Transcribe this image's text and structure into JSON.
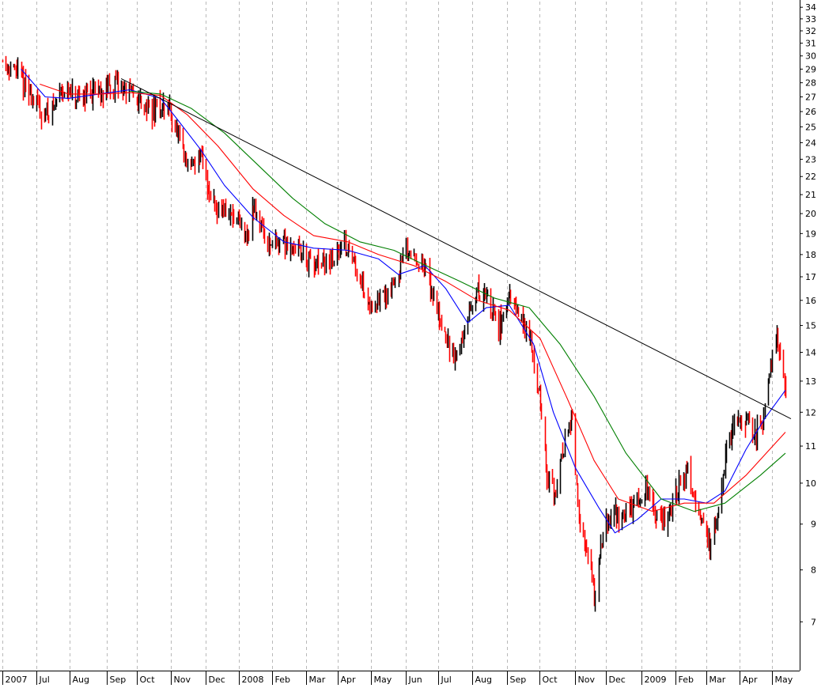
{
  "chart_data": {
    "type": "candlestick",
    "title": "",
    "xlabel": "",
    "ylabel": "",
    "y_scale": "log",
    "ylim": [
      6.2,
      34.5
    ],
    "grid": "vertical dashed",
    "y_ticks": [
      7,
      8,
      9,
      10,
      11,
      12,
      13,
      14,
      15,
      16,
      17,
      18,
      19,
      20,
      21,
      22,
      23,
      24,
      25,
      26,
      27,
      28,
      29,
      30,
      31,
      32,
      33,
      34
    ],
    "x_ticks": [
      {
        "label": "2007",
        "date": "2007-06-01"
      },
      {
        "label": "Jul",
        "date": "2007-07-02"
      },
      {
        "label": "Aug",
        "date": "2007-08-01"
      },
      {
        "label": "Sep",
        "date": "2007-09-04"
      },
      {
        "label": "Oct",
        "date": "2007-10-01"
      },
      {
        "label": "Nov",
        "date": "2007-11-01"
      },
      {
        "label": "Dec",
        "date": "2007-12-03"
      },
      {
        "label": "2008",
        "date": "2008-01-02"
      },
      {
        "label": "Feb",
        "date": "2008-02-01"
      },
      {
        "label": "Mar",
        "date": "2008-03-03"
      },
      {
        "label": "Apr",
        "date": "2008-04-01"
      },
      {
        "label": "May",
        "date": "2008-05-01"
      },
      {
        "label": "Jun",
        "date": "2008-06-02"
      },
      {
        "label": "Jul",
        "date": "2008-07-01"
      },
      {
        "label": "Aug",
        "date": "2008-08-01"
      },
      {
        "label": "Sep",
        "date": "2008-09-02"
      },
      {
        "label": "Oct",
        "date": "2008-10-01"
      },
      {
        "label": "Nov",
        "date": "2008-11-03"
      },
      {
        "label": "Dec",
        "date": "2008-12-01"
      },
      {
        "label": "2009",
        "date": "2009-01-02"
      },
      {
        "label": "Feb",
        "date": "2009-02-02"
      },
      {
        "label": "Mar",
        "date": "2009-03-02"
      },
      {
        "label": "Apr",
        "date": "2009-04-01"
      },
      {
        "label": "May",
        "date": "2009-05-01"
      }
    ],
    "price": [
      {
        "date": "2007-06-01",
        "close": 29.6
      },
      {
        "date": "2007-06-15",
        "close": 28.7
      },
      {
        "date": "2007-06-29",
        "close": 26.8
      },
      {
        "date": "2007-07-09",
        "close": 25.8
      },
      {
        "date": "2007-07-18",
        "close": 26.3
      },
      {
        "date": "2007-07-24",
        "close": 27.8
      },
      {
        "date": "2007-07-31",
        "close": 27.1
      },
      {
        "date": "2007-08-09",
        "close": 26.6
      },
      {
        "date": "2007-08-16",
        "close": 27.5
      },
      {
        "date": "2007-08-28",
        "close": 27.4
      },
      {
        "date": "2007-09-14",
        "close": 27.9
      },
      {
        "date": "2007-09-25",
        "close": 27.2
      },
      {
        "date": "2007-10-04",
        "close": 26.7
      },
      {
        "date": "2007-10-16",
        "close": 26.1
      },
      {
        "date": "2007-10-30",
        "close": 26.3
      },
      {
        "date": "2007-11-07",
        "close": 24.4
      },
      {
        "date": "2007-11-15",
        "close": 22.6
      },
      {
        "date": "2007-11-28",
        "close": 23.2
      },
      {
        "date": "2007-12-06",
        "close": 21.2
      },
      {
        "date": "2007-12-13",
        "close": 20.4
      },
      {
        "date": "2007-12-27",
        "close": 19.8
      },
      {
        "date": "2008-01-09",
        "close": 18.8
      },
      {
        "date": "2008-01-16",
        "close": 20.4
      },
      {
        "date": "2008-01-29",
        "close": 18.6
      },
      {
        "date": "2008-02-12",
        "close": 18.6
      },
      {
        "date": "2008-02-26",
        "close": 18.3
      },
      {
        "date": "2008-03-10",
        "close": 17.4
      },
      {
        "date": "2008-03-24",
        "close": 17.6
      },
      {
        "date": "2008-04-07",
        "close": 18.5
      },
      {
        "date": "2008-04-18",
        "close": 17.5
      },
      {
        "date": "2008-04-30",
        "close": 15.8
      },
      {
        "date": "2008-05-12",
        "close": 16.1
      },
      {
        "date": "2008-05-22",
        "close": 16.7
      },
      {
        "date": "2008-06-02",
        "close": 18.2
      },
      {
        "date": "2008-06-12",
        "close": 17.9
      },
      {
        "date": "2008-06-20",
        "close": 17.2
      },
      {
        "date": "2008-07-01",
        "close": 15.6
      },
      {
        "date": "2008-07-10",
        "close": 14.2
      },
      {
        "date": "2008-07-17",
        "close": 13.8
      },
      {
        "date": "2008-07-25",
        "close": 14.8
      },
      {
        "date": "2008-08-05",
        "close": 16.4
      },
      {
        "date": "2008-08-14",
        "close": 16.2
      },
      {
        "date": "2008-08-25",
        "close": 15.0
      },
      {
        "date": "2008-09-04",
        "close": 16.0
      },
      {
        "date": "2008-09-15",
        "close": 15.2
      },
      {
        "date": "2008-09-24",
        "close": 14.2
      },
      {
        "date": "2008-10-01",
        "close": 12.6
      },
      {
        "date": "2008-10-08",
        "close": 10.1
      },
      {
        "date": "2008-10-16",
        "close": 9.8
      },
      {
        "date": "2008-10-23",
        "close": 11.0
      },
      {
        "date": "2008-10-31",
        "close": 11.8
      },
      {
        "date": "2008-11-06",
        "close": 9.0
      },
      {
        "date": "2008-11-14",
        "close": 8.4
      },
      {
        "date": "2008-11-20",
        "close": 7.5
      },
      {
        "date": "2008-11-26",
        "close": 8.6
      },
      {
        "date": "2008-12-05",
        "close": 9.3
      },
      {
        "date": "2008-12-15",
        "close": 9.0
      },
      {
        "date": "2008-12-23",
        "close": 9.4
      },
      {
        "date": "2009-01-06",
        "close": 9.9
      },
      {
        "date": "2009-01-15",
        "close": 9.1
      },
      {
        "date": "2009-01-26",
        "close": 9.2
      },
      {
        "date": "2009-02-05",
        "close": 9.9
      },
      {
        "date": "2009-02-13",
        "close": 10.3
      },
      {
        "date": "2009-02-24",
        "close": 9.3
      },
      {
        "date": "2009-03-06",
        "close": 8.4
      },
      {
        "date": "2009-03-13",
        "close": 9.4
      },
      {
        "date": "2009-03-20",
        "close": 10.9
      },
      {
        "date": "2009-03-27",
        "close": 11.7
      },
      {
        "date": "2009-04-06",
        "close": 11.9
      },
      {
        "date": "2009-04-14",
        "close": 11.3
      },
      {
        "date": "2009-04-22",
        "close": 11.6
      },
      {
        "date": "2009-04-28",
        "close": 13.3
      },
      {
        "date": "2009-05-04",
        "close": 14.6
      },
      {
        "date": "2009-05-08",
        "close": 14.3
      },
      {
        "date": "2009-05-13",
        "close": 12.8
      }
    ],
    "ma_short": {
      "color": "#0000ff",
      "points": [
        {
          "date": "2007-06-18",
          "value": 29.0
        },
        {
          "date": "2007-07-10",
          "value": 27.0
        },
        {
          "date": "2007-07-31",
          "value": 26.9
        },
        {
          "date": "2007-08-28",
          "value": 27.2
        },
        {
          "date": "2007-09-25",
          "value": 27.5
        },
        {
          "date": "2007-10-23",
          "value": 26.9
        },
        {
          "date": "2007-11-08",
          "value": 25.4
        },
        {
          "date": "2007-11-28",
          "value": 23.6
        },
        {
          "date": "2007-12-20",
          "value": 21.5
        },
        {
          "date": "2008-01-15",
          "value": 19.8
        },
        {
          "date": "2008-02-12",
          "value": 18.6
        },
        {
          "date": "2008-03-10",
          "value": 18.3
        },
        {
          "date": "2008-04-10",
          "value": 18.2
        },
        {
          "date": "2008-05-08",
          "value": 17.8
        },
        {
          "date": "2008-05-26",
          "value": 17.1
        },
        {
          "date": "2008-06-19",
          "value": 17.5
        },
        {
          "date": "2008-07-08",
          "value": 16.5
        },
        {
          "date": "2008-07-28",
          "value": 15.1
        },
        {
          "date": "2008-08-14",
          "value": 15.7
        },
        {
          "date": "2008-09-04",
          "value": 15.8
        },
        {
          "date": "2008-09-26",
          "value": 14.3
        },
        {
          "date": "2008-10-14",
          "value": 12.0
        },
        {
          "date": "2008-11-03",
          "value": 10.4
        },
        {
          "date": "2008-11-24",
          "value": 9.4
        },
        {
          "date": "2008-12-09",
          "value": 8.8
        },
        {
          "date": "2008-12-29",
          "value": 9.1
        },
        {
          "date": "2009-01-20",
          "value": 9.6
        },
        {
          "date": "2009-02-10",
          "value": 9.6
        },
        {
          "date": "2009-03-02",
          "value": 9.5
        },
        {
          "date": "2009-03-19",
          "value": 9.8
        },
        {
          "date": "2009-04-07",
          "value": 10.9
        },
        {
          "date": "2009-04-24",
          "value": 11.8
        },
        {
          "date": "2009-05-13",
          "value": 12.7
        }
      ]
    },
    "ma_mid": {
      "color": "#ff0000",
      "points": [
        {
          "date": "2007-07-05",
          "value": 27.9
        },
        {
          "date": "2007-07-31",
          "value": 27.2
        },
        {
          "date": "2007-08-28",
          "value": 27.2
        },
        {
          "date": "2007-09-25",
          "value": 27.3
        },
        {
          "date": "2007-10-23",
          "value": 27.1
        },
        {
          "date": "2007-11-16",
          "value": 25.8
        },
        {
          "date": "2007-12-14",
          "value": 23.8
        },
        {
          "date": "2008-01-15",
          "value": 21.3
        },
        {
          "date": "2008-02-12",
          "value": 19.9
        },
        {
          "date": "2008-03-10",
          "value": 18.9
        },
        {
          "date": "2008-04-10",
          "value": 18.6
        },
        {
          "date": "2008-05-08",
          "value": 18.0
        },
        {
          "date": "2008-06-09",
          "value": 17.5
        },
        {
          "date": "2008-07-08",
          "value": 16.8
        },
        {
          "date": "2008-08-06",
          "value": 16.0
        },
        {
          "date": "2008-09-04",
          "value": 15.6
        },
        {
          "date": "2008-10-02",
          "value": 14.5
        },
        {
          "date": "2008-10-27",
          "value": 12.4
        },
        {
          "date": "2008-11-20",
          "value": 10.6
        },
        {
          "date": "2008-12-12",
          "value": 9.6
        },
        {
          "date": "2009-01-12",
          "value": 9.3
        },
        {
          "date": "2009-02-10",
          "value": 9.5
        },
        {
          "date": "2009-03-09",
          "value": 9.5
        },
        {
          "date": "2009-04-07",
          "value": 10.2
        },
        {
          "date": "2009-05-13",
          "value": 11.4
        }
      ]
    },
    "ma_long": {
      "color": "#007f00",
      "points": [
        {
          "date": "2007-09-25",
          "value": 27.4
        },
        {
          "date": "2007-10-23",
          "value": 27.2
        },
        {
          "date": "2007-11-20",
          "value": 26.2
        },
        {
          "date": "2007-12-20",
          "value": 24.6
        },
        {
          "date": "2008-01-22",
          "value": 22.5
        },
        {
          "date": "2008-02-20",
          "value": 20.8
        },
        {
          "date": "2008-03-20",
          "value": 19.5
        },
        {
          "date": "2008-04-21",
          "value": 18.6
        },
        {
          "date": "2008-05-22",
          "value": 18.2
        },
        {
          "date": "2008-06-20",
          "value": 17.5
        },
        {
          "date": "2008-07-21",
          "value": 16.8
        },
        {
          "date": "2008-08-21",
          "value": 16.1
        },
        {
          "date": "2008-09-22",
          "value": 15.7
        },
        {
          "date": "2008-10-20",
          "value": 14.3
        },
        {
          "date": "2008-11-20",
          "value": 12.5
        },
        {
          "date": "2008-12-19",
          "value": 10.8
        },
        {
          "date": "2009-01-20",
          "value": 9.6
        },
        {
          "date": "2009-02-19",
          "value": 9.3
        },
        {
          "date": "2009-03-19",
          "value": 9.5
        },
        {
          "date": "2009-04-20",
          "value": 10.2
        },
        {
          "date": "2009-05-13",
          "value": 10.8
        }
      ]
    },
    "trendline": {
      "color": "#000000",
      "from": {
        "date": "2007-09-17",
        "value": 28.3
      },
      "to": {
        "date": "2009-05-18",
        "value": 11.8
      }
    }
  }
}
